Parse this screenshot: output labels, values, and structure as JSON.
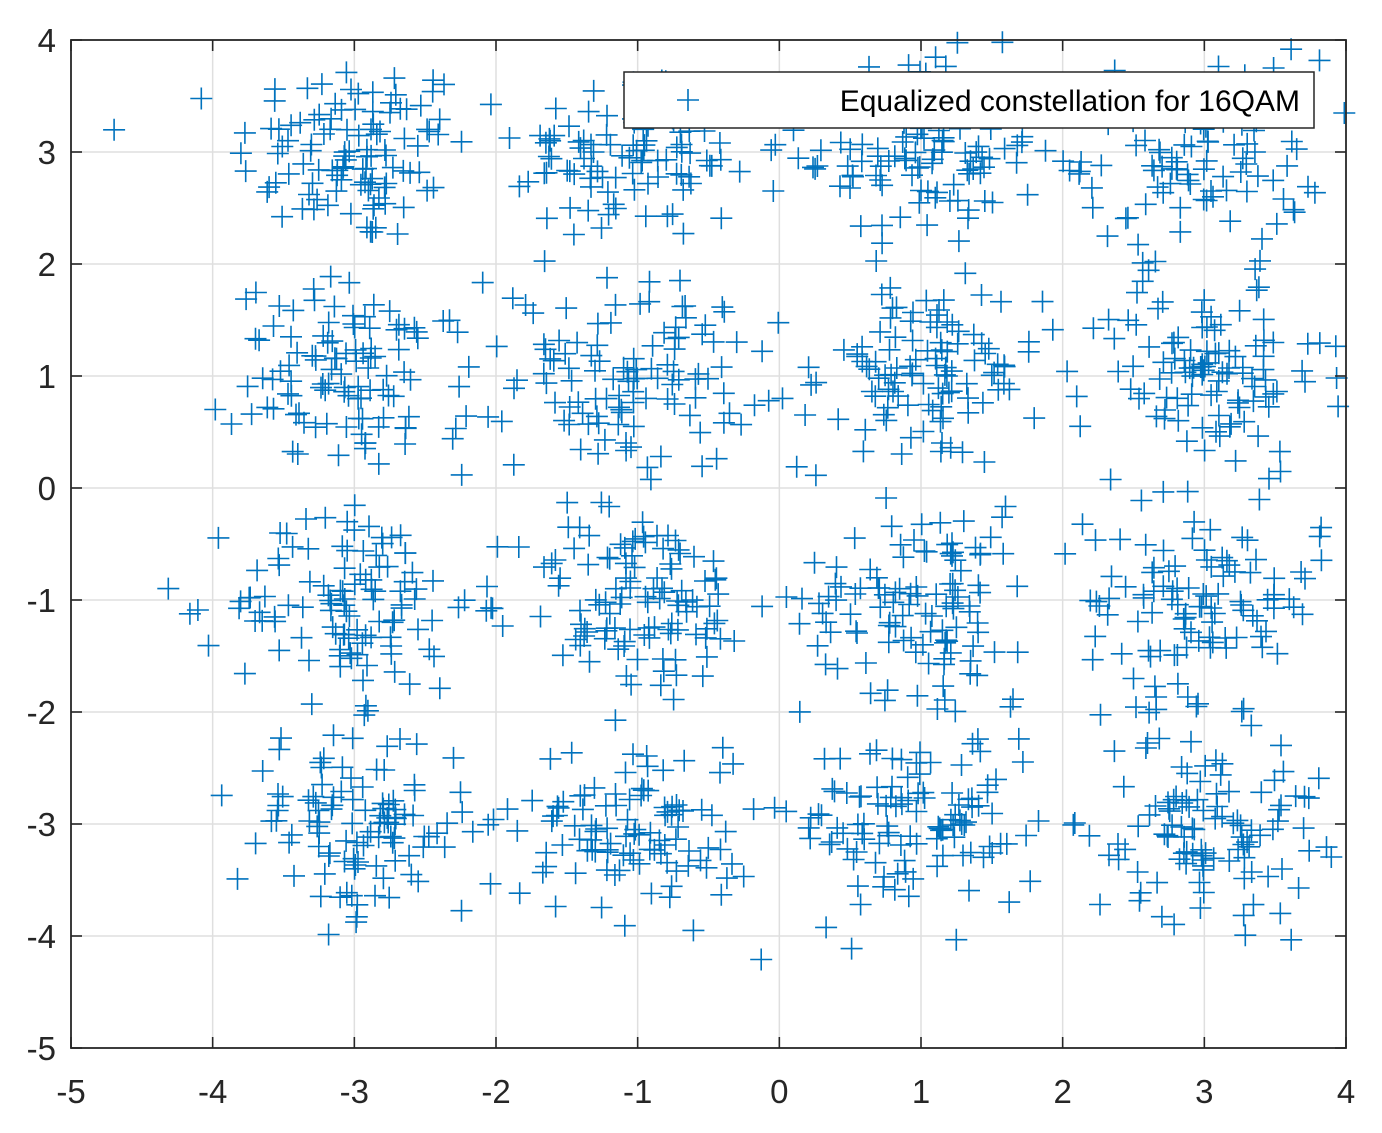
{
  "colors": {
    "marker": "#0072bd",
    "grid": "#dfdfdf",
    "axis": "#262626",
    "background": "#ffffff"
  },
  "chart_data": {
    "type": "scatter",
    "title": "",
    "xlabel": "",
    "ylabel": "",
    "xlim": [
      -5,
      4
    ],
    "ylim": [
      -5,
      4
    ],
    "xticks": [
      -5,
      -4,
      -3,
      -2,
      -1,
      0,
      1,
      2,
      3,
      4
    ],
    "yticks": [
      -5,
      -4,
      -3,
      -2,
      -1,
      0,
      1,
      2,
      3,
      4
    ],
    "grid": true,
    "legend_position": "top-right",
    "marker": "plus",
    "series": [
      {
        "name": "Equalized constellation for 16QAM",
        "points_per_cluster": 110,
        "cluster_centers": [
          [
            -3,
            3
          ],
          [
            -1,
            3
          ],
          [
            1,
            3
          ],
          [
            3,
            3
          ],
          [
            -3,
            1
          ],
          [
            -1,
            1
          ],
          [
            1,
            1
          ],
          [
            3,
            1
          ],
          [
            -3,
            -1
          ],
          [
            -1,
            -1
          ],
          [
            1,
            -1
          ],
          [
            3,
            -1
          ],
          [
            -3,
            -3
          ],
          [
            -1,
            -3
          ],
          [
            1,
            -3
          ],
          [
            3,
            -3
          ]
        ],
        "noise_sigma": 0.42
      }
    ]
  }
}
